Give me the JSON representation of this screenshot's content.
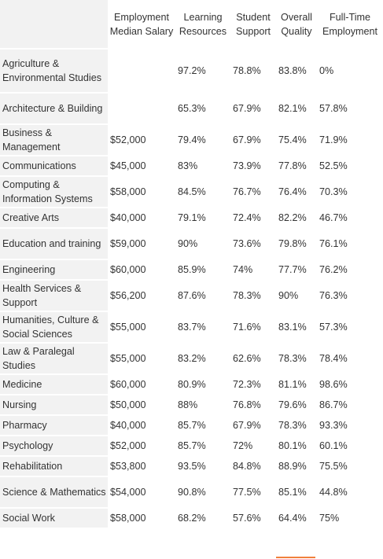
{
  "table": {
    "headers": {
      "salary": "Employment Median Salary",
      "learning": "Learning Resources",
      "support": "Student Support",
      "quality": "Overall Quality",
      "employment": "Full-Time Employment"
    },
    "rows": [
      {
        "field": "Agriculture & Environmental Studies",
        "salary": "",
        "learning": "97.2%",
        "support": "78.8%",
        "quality": "83.8%",
        "employment": "0%"
      },
      {
        "field": "Architecture & Building",
        "salary": "",
        "learning": "65.3%",
        "support": "67.9%",
        "quality": "82.1%",
        "employment": "57.8%"
      },
      {
        "field": "Business & Management",
        "salary": "$52,000",
        "learning": "79.4%",
        "support": "67.9%",
        "quality": "75.4%",
        "employment": "71.9%"
      },
      {
        "field": "Communications",
        "salary": "$45,000",
        "learning": "83%",
        "support": "73.9%",
        "quality": "77.8%",
        "employment": "52.5%"
      },
      {
        "field": "Computing & Information Systems",
        "salary": "$58,000",
        "learning": "84.5%",
        "support": "76.7%",
        "quality": "76.4%",
        "employment": "70.3%"
      },
      {
        "field": "Creative Arts",
        "salary": "$40,000",
        "learning": "79.1%",
        "support": "72.4%",
        "quality": "82.2%",
        "employment": "46.7%"
      },
      {
        "field": "Education and training",
        "salary": "$59,000",
        "learning": "90%",
        "support": "73.6%",
        "quality": "79.8%",
        "employment": "76.1%"
      },
      {
        "field": "Engineering",
        "salary": "$60,000",
        "learning": "85.9%",
        "support": "74%",
        "quality": "77.7%",
        "employment": "76.2%"
      },
      {
        "field": "Health Services & Support",
        "salary": "$56,200",
        "learning": "87.6%",
        "support": "78.3%",
        "quality": "90%",
        "employment": "76.3%"
      },
      {
        "field": "Humanities, Culture & Social Sciences",
        "salary": "$55,000",
        "learning": "83.7%",
        "support": "71.6%",
        "quality": "83.1%",
        "employment": "57.3%"
      },
      {
        "field": "Law & Paralegal Studies",
        "salary": "$55,000",
        "learning": "83.2%",
        "support": "62.6%",
        "quality": "78.3%",
        "employment": "78.4%"
      },
      {
        "field": "Medicine",
        "salary": "$60,000",
        "learning": "80.9%",
        "support": "72.3%",
        "quality": "81.1%",
        "employment": "98.6%"
      },
      {
        "field": "Nursing",
        "salary": "$50,000",
        "learning": "88%",
        "support": "76.8%",
        "quality": "79.6%",
        "employment": "86.7%"
      },
      {
        "field": "Pharmacy",
        "salary": "$40,000",
        "learning": "85.7%",
        "support": "67.9%",
        "quality": "78.3%",
        "employment": "93.3%"
      },
      {
        "field": "Psychology",
        "salary": "$52,000",
        "learning": "85.7%",
        "support": "72%",
        "quality": "80.1%",
        "employment": "60.1%"
      },
      {
        "field": "Rehabilitation",
        "salary": "$53,800",
        "learning": "93.5%",
        "support": "84.8%",
        "quality": "88.9%",
        "employment": "75.5%"
      },
      {
        "field": "Science & Mathematics",
        "salary": "$54,000",
        "learning": "90.8%",
        "support": "77.5%",
        "quality": "85.1%",
        "employment": "44.8%"
      },
      {
        "field": "Social Work",
        "salary": "$58,000",
        "learning": "68.2%",
        "support": "57.6%",
        "quality": "64.4%",
        "employment": "75%"
      }
    ]
  },
  "colors": {
    "rowhead_bg": "#f2f2f2",
    "text": "#333333",
    "accent_underline": "#f0803c"
  }
}
